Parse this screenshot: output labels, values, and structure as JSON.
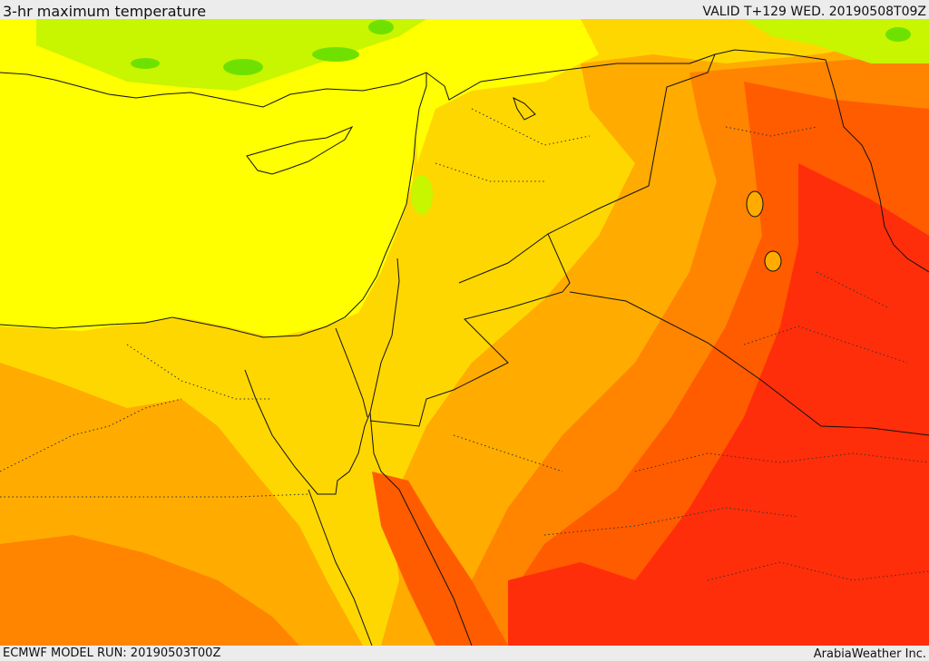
{
  "header": {
    "title": "3-hr maximum temperature",
    "valid": "VALID T+129 WED. 20190508T09Z"
  },
  "footer": {
    "model_run": "ECMWF MODEL RUN: 20190503T00Z",
    "credit": "ArabiaWeather Inc."
  },
  "map": {
    "field": "3-hr maximum temperature",
    "region": "Eastern Mediterranean / Levant / Arabian Peninsula",
    "colors": {
      "green": "#6fe100",
      "lime": "#c8f500",
      "yellow": "#ffff00",
      "gold": "#ffd700",
      "amber": "#ffab00",
      "orange": "#ff8400",
      "dark_orange": "#ff5c00",
      "red": "#ff2e0a",
      "border": "#111111"
    }
  }
}
